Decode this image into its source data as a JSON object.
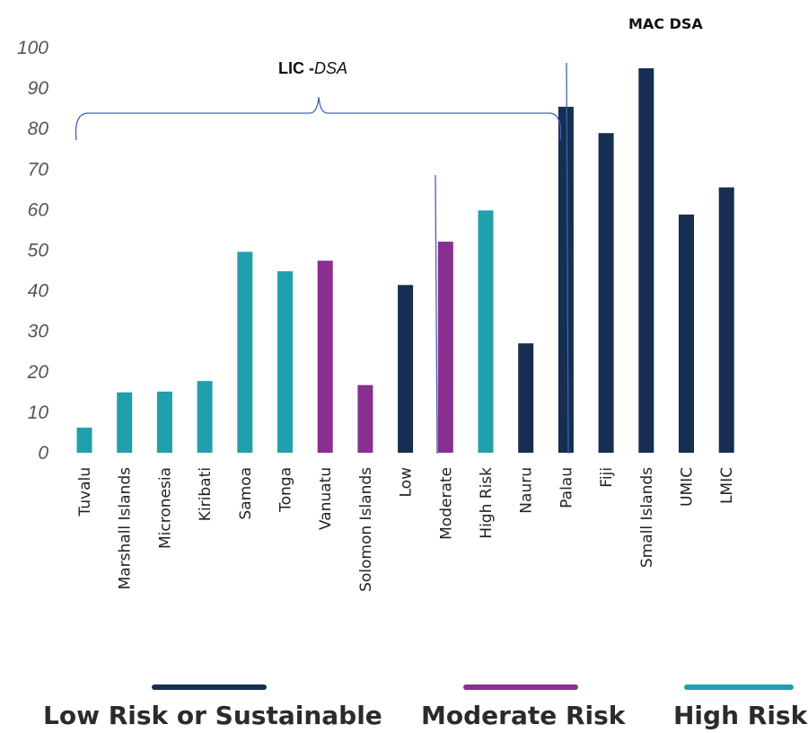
{
  "chart_data": {
    "type": "bar",
    "title": "",
    "xlabel": "",
    "ylabel": "",
    "ylim": [
      0,
      100
    ],
    "yticks": [
      0,
      10,
      20,
      30,
      40,
      50,
      60,
      70,
      80,
      90,
      100
    ],
    "grid": false,
    "categories": [
      "Tuvalu",
      "Marshall Islands",
      "Micronesia",
      "Kiribati",
      "Samoa",
      "Tonga",
      "Vanuatu",
      "Solomon Islands",
      "Low",
      "Moderate",
      "High Risk",
      "Nauru",
      "Palau",
      "Fiji",
      "Small Islands",
      "UMIC",
      "LMIC"
    ],
    "values": [
      6.2,
      14.9,
      15.1,
      17.7,
      49.6,
      44.8,
      47.4,
      16.7,
      41.4,
      52.1,
      59.8,
      27.0,
      85.4,
      78.9,
      94.9,
      58.8,
      65.5
    ],
    "risk": [
      "high",
      "high",
      "high",
      "high",
      "high",
      "high",
      "moderate",
      "moderate",
      "low",
      "moderate",
      "high",
      "low",
      "low",
      "low",
      "low",
      "low",
      "low"
    ],
    "colors": {
      "low": "#152e51",
      "moderate": "#88308f",
      "high": "#20a0ac"
    },
    "annotations": {
      "lic_bold": "LIC -",
      "lic_italic": "DSA",
      "mac": "MAC DSA"
    },
    "legend_position": "bottom",
    "legend": [
      {
        "label": "Low Risk or Sustainable",
        "color": "#152e51"
      },
      {
        "label": "Moderate Risk",
        "color": "#88308f"
      },
      {
        "label": "High Risk",
        "color": "#20a0ac"
      }
    ]
  }
}
